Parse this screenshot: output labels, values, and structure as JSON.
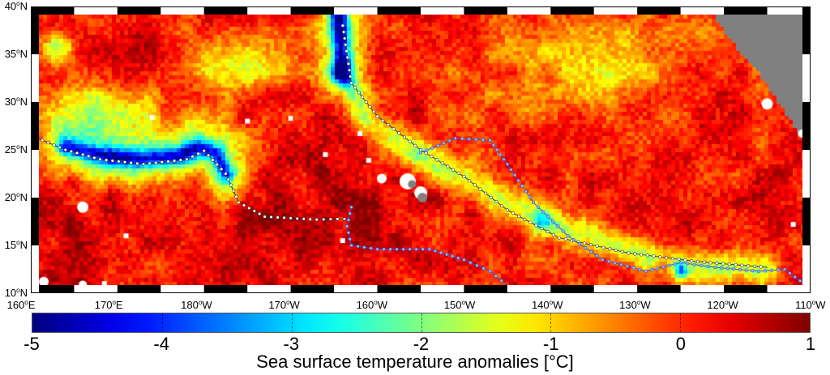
{
  "map": {
    "lat_labels": [
      "40",
      "35",
      "30",
      "25",
      "20",
      "15",
      "10"
    ],
    "lat_suffix": "N",
    "lon_labels": [
      {
        "deg": "160",
        "hem": "E"
      },
      {
        "deg": "170",
        "hem": "E"
      },
      {
        "deg": "180",
        "hem": "W"
      },
      {
        "deg": "170",
        "hem": "W"
      },
      {
        "deg": "160",
        "hem": "W"
      },
      {
        "deg": "150",
        "hem": "W"
      },
      {
        "deg": "140",
        "hem": "W"
      },
      {
        "deg": "130",
        "hem": "W"
      },
      {
        "deg": "120",
        "hem": "W"
      },
      {
        "deg": "110",
        "hem": "W"
      }
    ],
    "degree_symbol": "o",
    "land_color": "#808080"
  },
  "colorbar": {
    "ticks": [
      "-5",
      "-4",
      "-3",
      "-2",
      "-1",
      "0",
      "1"
    ],
    "range": [
      -5,
      1
    ],
    "colormap": "jet",
    "title": "Sea surface temperature anomalies [°C]"
  }
}
